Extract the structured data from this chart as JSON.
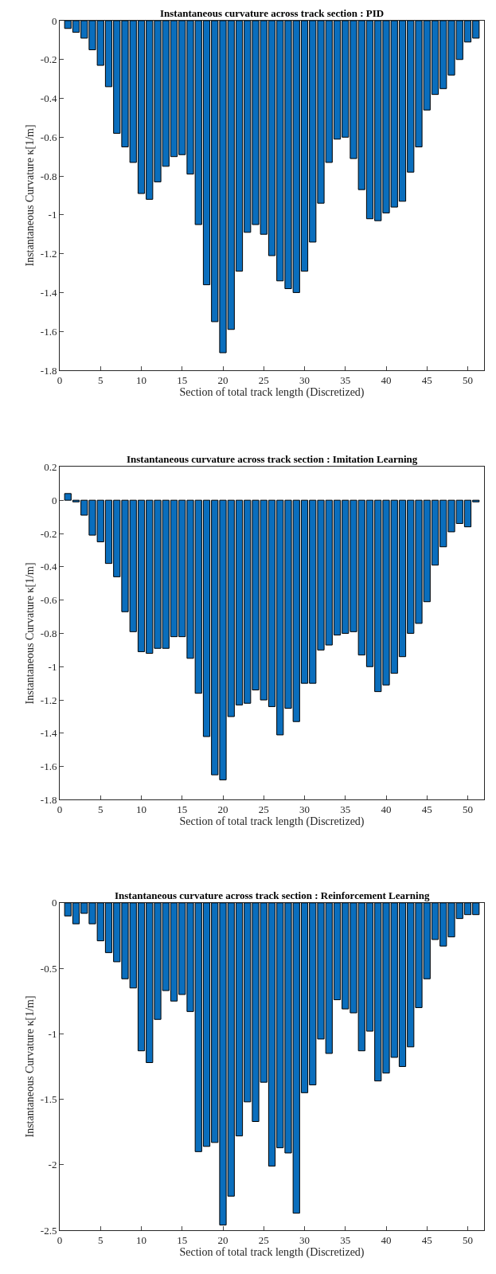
{
  "chart_data": [
    {
      "type": "bar",
      "title": "Instantaneous curvature across track section : PID",
      "xlabel": "Section of total track length (Discretized)",
      "ylabel": "Instantaneous Curvature κ[1/m]",
      "x": [
        1,
        2,
        3,
        4,
        5,
        6,
        7,
        8,
        9,
        10,
        11,
        12,
        13,
        14,
        15,
        16,
        17,
        18,
        19,
        20,
        21,
        22,
        23,
        24,
        25,
        26,
        27,
        28,
        29,
        30,
        31,
        32,
        33,
        34,
        35,
        36,
        37,
        38,
        39,
        40,
        41,
        42,
        43,
        44,
        45,
        46,
        47,
        48,
        49,
        50,
        51
      ],
      "color": "#0a6ebd",
      "values": [
        -0.04,
        -0.06,
        -0.09,
        -0.15,
        -0.23,
        -0.34,
        -0.58,
        -0.65,
        -0.73,
        -0.89,
        -0.92,
        -0.83,
        -0.75,
        -0.7,
        -0.69,
        -0.79,
        -1.05,
        -1.36,
        -1.55,
        -1.71,
        -1.59,
        -1.29,
        -1.09,
        -1.05,
        -1.1,
        -1.21,
        -1.34,
        -1.38,
        -1.4,
        -1.29,
        -1.14,
        -0.94,
        -0.73,
        -0.61,
        -0.6,
        -0.71,
        -0.87,
        -1.02,
        -1.03,
        -0.99,
        -0.96,
        -0.93,
        -0.78,
        -0.65,
        -0.46,
        -0.38,
        -0.35,
        -0.28,
        -0.2,
        -0.11,
        -0.09
      ],
      "xlim": [
        0,
        52
      ],
      "xticks": [
        0,
        5,
        10,
        15,
        20,
        25,
        30,
        35,
        40,
        45,
        50
      ],
      "ylim": [
        -1.8,
        0
      ],
      "yticks": [
        -1.8,
        -1.6,
        -1.4,
        -1.2,
        -1,
        -0.8,
        -0.6,
        -0.4,
        -0.2,
        0
      ]
    },
    {
      "type": "bar",
      "title": "Instantaneous curvature across track section : Imitation Learning",
      "xlabel": "Section of total track length (Discretized)",
      "ylabel": "Instantaneous Curvature κ[1/m]",
      "x": [
        1,
        2,
        3,
        4,
        5,
        6,
        7,
        8,
        9,
        10,
        11,
        12,
        13,
        14,
        15,
        16,
        17,
        18,
        19,
        20,
        21,
        22,
        23,
        24,
        25,
        26,
        27,
        28,
        29,
        30,
        31,
        32,
        33,
        34,
        35,
        36,
        37,
        38,
        39,
        40,
        41,
        42,
        43,
        44,
        45,
        46,
        47,
        48,
        49,
        50,
        51
      ],
      "color": "#0a6ebd",
      "values": [
        0.04,
        -0.01,
        -0.09,
        -0.21,
        -0.25,
        -0.38,
        -0.46,
        -0.67,
        -0.79,
        -0.91,
        -0.92,
        -0.89,
        -0.89,
        -0.82,
        -0.82,
        -0.95,
        -1.16,
        -1.42,
        -1.65,
        -1.68,
        -1.3,
        -1.23,
        -1.22,
        -1.14,
        -1.2,
        -1.24,
        -1.41,
        -1.25,
        -1.33,
        -1.1,
        -1.1,
        -0.9,
        -0.87,
        -0.81,
        -0.8,
        -0.79,
        -0.93,
        -1.0,
        -1.15,
        -1.11,
        -1.04,
        -0.94,
        -0.8,
        -0.74,
        -0.61,
        -0.39,
        -0.28,
        -0.19,
        -0.14,
        -0.16,
        -0.01
      ],
      "xlim": [
        0,
        52
      ],
      "xticks": [
        0,
        5,
        10,
        15,
        20,
        25,
        30,
        35,
        40,
        45,
        50
      ],
      "ylim": [
        -1.8,
        0.2
      ],
      "yticks": [
        -1.8,
        -1.6,
        -1.4,
        -1.2,
        -1,
        -0.8,
        -0.6,
        -0.4,
        -0.2,
        0,
        0.2
      ]
    },
    {
      "type": "bar",
      "title": "Instantaneous curvature across track section : Reinforcement Learning",
      "xlabel": "Section of total track length (Discretized)",
      "ylabel": "Instantaneous Curvature κ[1/m]",
      "x": [
        1,
        2,
        3,
        4,
        5,
        6,
        7,
        8,
        9,
        10,
        11,
        12,
        13,
        14,
        15,
        16,
        17,
        18,
        19,
        20,
        21,
        22,
        23,
        24,
        25,
        26,
        27,
        28,
        29,
        30,
        31,
        32,
        33,
        34,
        35,
        36,
        37,
        38,
        39,
        40,
        41,
        42,
        43,
        44,
        45,
        46,
        47,
        48,
        49,
        50,
        51
      ],
      "color": "#0a6ebd",
      "values": [
        -0.1,
        -0.16,
        -0.08,
        -0.16,
        -0.29,
        -0.38,
        -0.45,
        -0.58,
        -0.65,
        -1.13,
        -1.22,
        -0.89,
        -0.67,
        -0.75,
        -0.7,
        -0.83,
        -1.9,
        -1.86,
        -1.83,
        -2.46,
        -2.24,
        -1.78,
        -1.52,
        -1.67,
        -1.37,
        -2.01,
        -1.87,
        -1.91,
        -2.37,
        -1.45,
        -1.39,
        -1.04,
        -1.15,
        -0.74,
        -0.81,
        -0.84,
        -1.13,
        -0.98,
        -1.36,
        -1.3,
        -1.18,
        -1.25,
        -1.1,
        -0.8,
        -0.58,
        -0.28,
        -0.33,
        -0.26,
        -0.12,
        -0.09,
        -0.09
      ],
      "xlim": [
        0,
        52
      ],
      "xticks": [
        0,
        5,
        10,
        15,
        20,
        25,
        30,
        35,
        40,
        45,
        50
      ],
      "ylim": [
        -2.5,
        0
      ],
      "yticks": [
        -2.5,
        -2,
        -1.5,
        -1,
        -0.5,
        0
      ]
    }
  ]
}
